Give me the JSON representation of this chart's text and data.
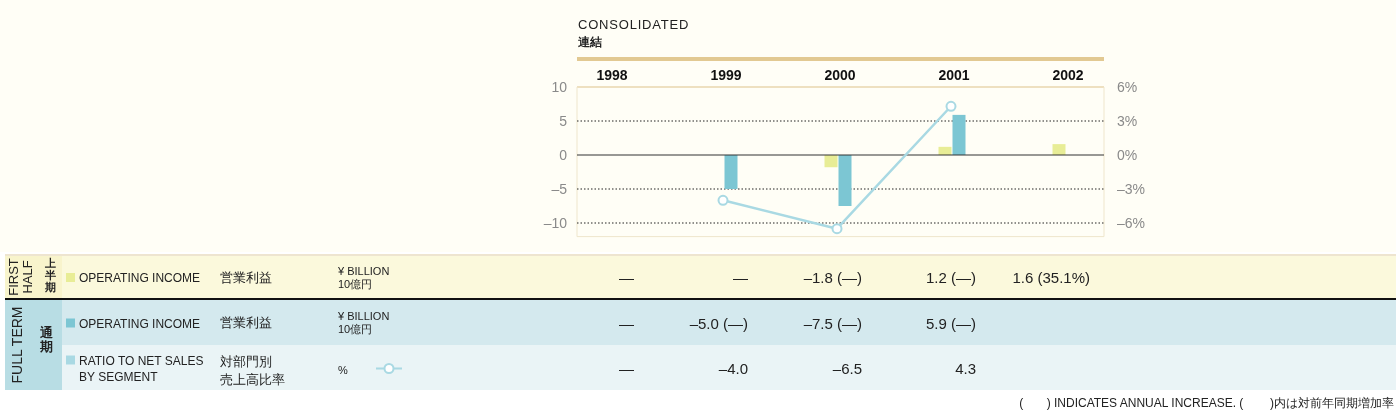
{
  "chart_data": {
    "type": "bar",
    "title": "CONSOLIDATED",
    "subtitle": "連結",
    "categories": [
      "1998",
      "1999",
      "2000",
      "2001",
      "2002"
    ],
    "series": [
      {
        "name": "OPERATING INCOME",
        "color": "#e8ed96",
        "values": [
          null,
          null,
          -1.8,
          1.2,
          1.6
        ],
        "value_labels": [
          "—",
          "—",
          "–1.8 (—)",
          "1.2 (—)",
          "1.6 (35.1%)"
        ]
      },
      {
        "name": "OPERATING INCOME",
        "color": "#7cc6d3",
        "values": [
          null,
          -5.0,
          -7.5,
          5.9,
          null
        ],
        "value_labels": [
          "—",
          "–5.0 (—)",
          "–7.5 (—)",
          "5.9 (—)",
          null
        ]
      },
      {
        "name": "RATIO TO NET SALES BY SEGMENT",
        "type": "line",
        "axis": "y2",
        "marker": "circle",
        "color": "#a9d9e3",
        "values": [
          null,
          -4.0,
          -6.5,
          4.3,
          null
        ],
        "value_labels": [
          "—",
          "–4.0",
          "–6.5",
          "4.3",
          null
        ]
      }
    ],
    "ylim": [
      -12,
      10
    ],
    "yticks": [
      10,
      5,
      0,
      {
        "value": -5,
        "label": "–5"
      },
      {
        "value": -10,
        "label": "–10"
      }
    ],
    "y2lim": [
      -7.2,
      6
    ],
    "y2ticks": [
      {
        "value": 6,
        "label": "6%"
      },
      {
        "value": 3,
        "label": "3%"
      },
      {
        "value": 0,
        "label": "0%"
      },
      {
        "value": -3,
        "label": "–3%"
      },
      {
        "value": -6,
        "label": "–6%"
      }
    ],
    "ref_lines": [
      {
        "axis": "y",
        "value": 0,
        "color": "#333333"
      }
    ],
    "grid": "y",
    "legend": "bottom",
    "annotations": [
      "FIRST HALF",
      "上半期",
      "FULL TERM",
      "通期",
      "営業利益",
      "¥ BILLION",
      "10億円",
      "営業利益",
      "¥ BILLION",
      "10億円",
      "対部門別",
      "売上高比率",
      "%",
      "(       ) INDICATES ANNUAL INCREASE. (        )内は対前年同期増加率"
    ]
  }
}
